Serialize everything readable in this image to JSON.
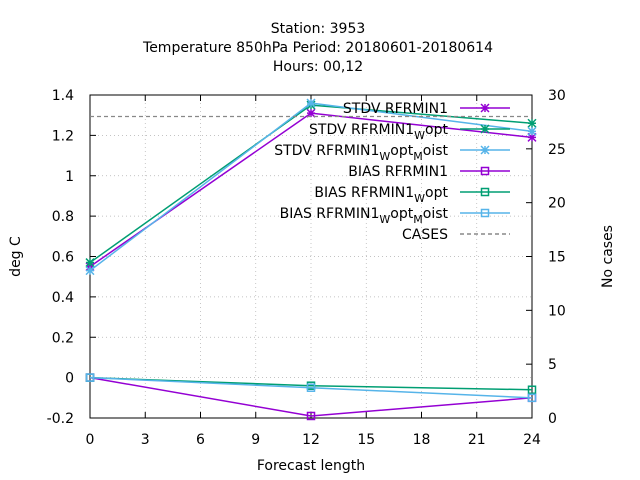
{
  "chart_data": {
    "type": "line",
    "title": [
      "Station:      3953",
      "Temperature 850hPa    Period: 20180601-20180614",
      "Hours:  00,12"
    ],
    "xlabel": "Forecast length",
    "ylabel": "deg C",
    "y2label": "No cases",
    "xlim": [
      0,
      24
    ],
    "ylim": [
      -0.2,
      1.4
    ],
    "y2lim": [
      0,
      30
    ],
    "xticks": [
      "0",
      "3",
      "6",
      "9",
      "12",
      "15",
      "18",
      "21",
      "24"
    ],
    "xtick_values": [
      0,
      3,
      6,
      9,
      12,
      15,
      18,
      21,
      24
    ],
    "yticks": [
      "-0.2",
      "0",
      "0.2",
      "0.4",
      "0.6",
      "0.8",
      "1",
      "1.2",
      "1.4"
    ],
    "ytick_values": [
      -0.2,
      0,
      0.2,
      0.4,
      0.6,
      0.8,
      1.0,
      1.2,
      1.4
    ],
    "y2ticks": [
      "0",
      "5",
      "10",
      "15",
      "20",
      "25",
      "30"
    ],
    "y2tick_values": [
      0,
      5,
      10,
      15,
      20,
      25,
      30
    ],
    "grid": true,
    "legend_position": "top-right",
    "x": [
      0,
      12,
      24
    ],
    "series": [
      {
        "name": "STDV RFRMIN1",
        "values": [
          0.55,
          1.31,
          1.19
        ],
        "color": "#9400d3",
        "marker": "x",
        "axis": "y"
      },
      {
        "name": "STDV RFRMIN1_W opt",
        "name_parts": [
          "STDV RFRMIN1",
          "W",
          "opt",
          ""
        ],
        "values": [
          0.57,
          1.35,
          1.26
        ],
        "color": "#009e73",
        "marker": "x",
        "axis": "y"
      },
      {
        "name": "STDV RFRMIN1_W opt_M oist",
        "name_parts": [
          "STDV RFRMIN1",
          "W",
          "opt",
          "M",
          "oist"
        ],
        "values": [
          0.53,
          1.36,
          1.22
        ],
        "color": "#56b4e9",
        "marker": "x",
        "axis": "y"
      },
      {
        "name": "BIAS RFRMIN1",
        "values": [
          0.0,
          -0.19,
          -0.1
        ],
        "color": "#9400d3",
        "marker": "square",
        "axis": "y"
      },
      {
        "name": "BIAS RFRMIN1_W opt",
        "name_parts": [
          "BIAS RFRMIN1",
          "W",
          "opt",
          ""
        ],
        "values": [
          0.0,
          -0.04,
          -0.06
        ],
        "color": "#009e73",
        "marker": "square",
        "axis": "y"
      },
      {
        "name": "BIAS RFRMIN1_W opt_M oist",
        "name_parts": [
          "BIAS RFRMIN1",
          "W",
          "opt",
          "M",
          "oist"
        ],
        "values": [
          0.0,
          -0.05,
          -0.1
        ],
        "color": "#56b4e9",
        "marker": "square",
        "axis": "y"
      },
      {
        "name": "CASES",
        "values": [
          28,
          28,
          28
        ],
        "color": "#888888",
        "marker": "none",
        "dashed": true,
        "axis": "y2"
      }
    ]
  }
}
